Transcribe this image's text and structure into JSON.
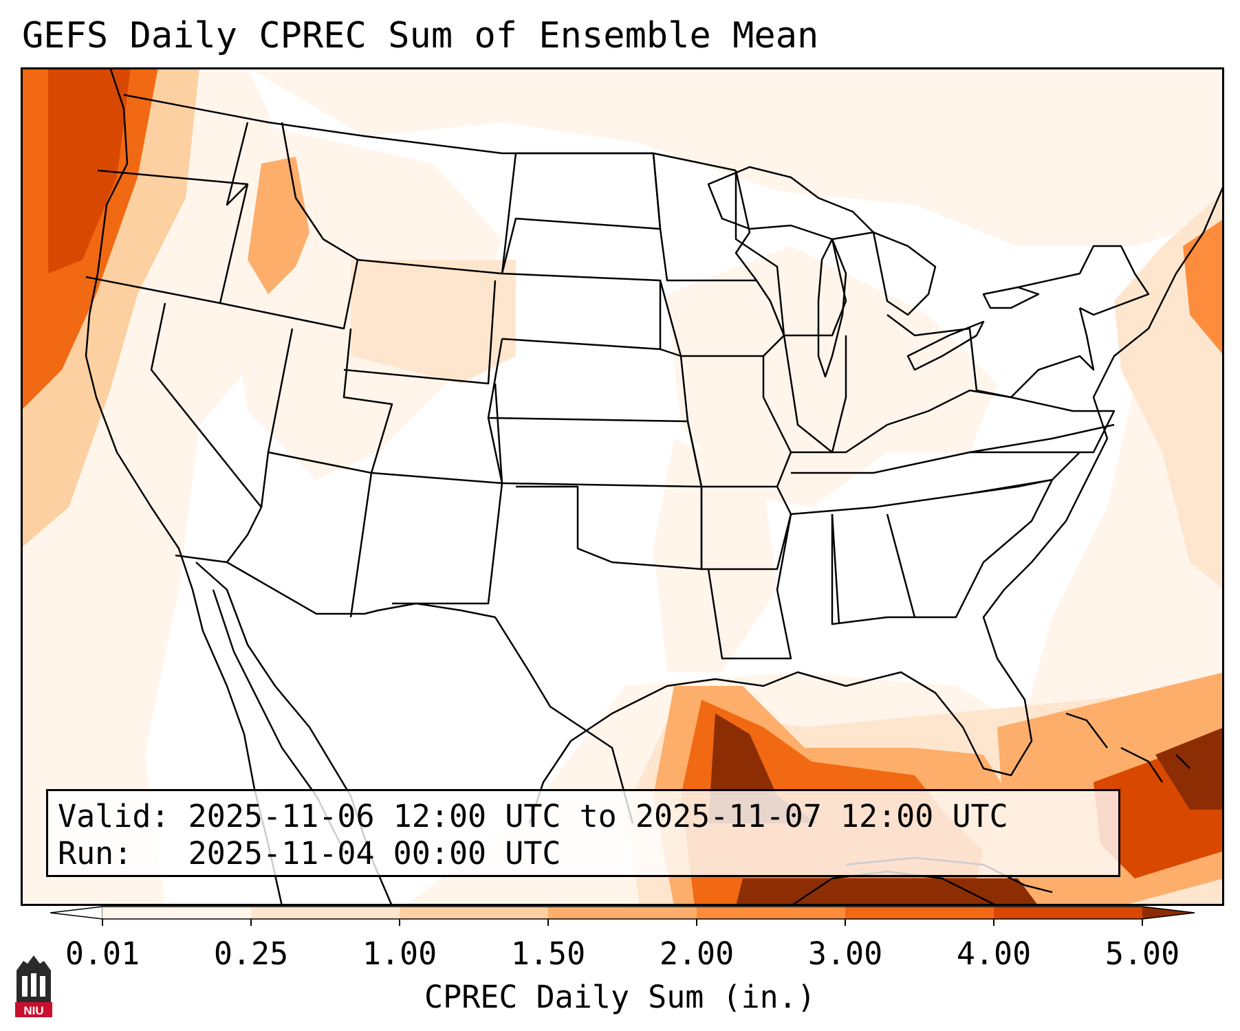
{
  "title": "GEFS Daily CPREC Sum of Ensemble Mean",
  "info": {
    "valid_label": "Valid:",
    "valid_value": "2025-11-06 12:00 UTC to 2025-11-07 12:00 UTC",
    "run_label": "Run:",
    "run_value": "2025-11-04 00:00 UTC"
  },
  "colorbar": {
    "label": "CPREC Daily Sum (in.)",
    "ticks": [
      "0.01",
      "0.25",
      "1.00",
      "1.50",
      "2.00",
      "3.00",
      "4.00",
      "5.00"
    ],
    "colors": [
      "#fff5eb",
      "#fee6ce",
      "#fdd0a2",
      "#fdae6b",
      "#fd8d3c",
      "#f16913",
      "#d94801",
      "#8c2d04"
    ],
    "extend": "both"
  },
  "logo": {
    "text": "NIU",
    "color": "#c8102e"
  },
  "map": {
    "projection": "Lambert Conformal (CONUS)",
    "features": [
      "coastlines",
      "state-borders",
      "country-borders"
    ]
  }
}
